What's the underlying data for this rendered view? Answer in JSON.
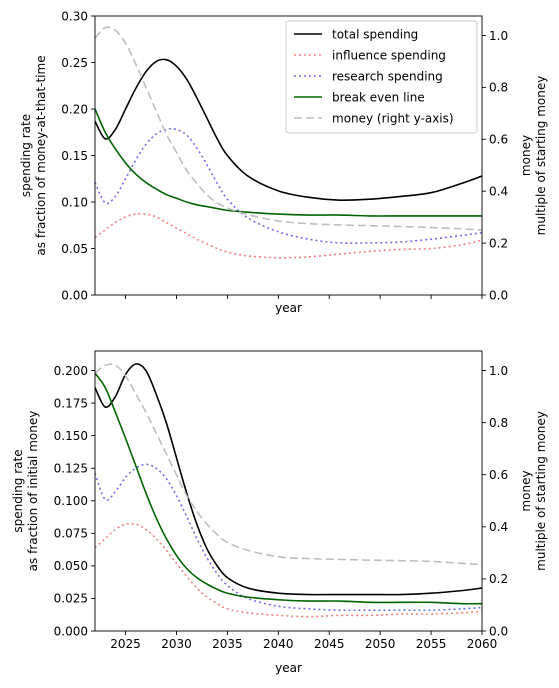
{
  "chart_data": [
    {
      "type": "line",
      "xlabel": "year",
      "ylabel": [
        "spending rate",
        "as fraction of money-at-that-time"
      ],
      "y2label": [
        "money",
        "multiple of starting money"
      ],
      "xlim": [
        2022,
        2060
      ],
      "ylim": [
        0,
        0.3
      ],
      "y2lim": [
        0,
        1.075
      ],
      "xticks": [
        2025,
        2030,
        2035,
        2040,
        2045,
        2050,
        2055,
        2060
      ],
      "show_xtick_labels": false,
      "yticks": [
        "0.00",
        "0.05",
        "0.10",
        "0.15",
        "0.20",
        "0.25",
        "0.30"
      ],
      "y2ticks": [
        "0.0",
        "0.2",
        "0.4",
        "0.6",
        "0.8",
        "1.0"
      ],
      "grid": false,
      "legend_position": "top-right",
      "x": [
        2022,
        2023,
        2024,
        2025,
        2026,
        2027,
        2028,
        2029,
        2030,
        2031,
        2032,
        2033,
        2034,
        2035,
        2037,
        2040,
        2043,
        2046,
        2049,
        2052,
        2055,
        2058,
        2060
      ],
      "series": [
        {
          "name": "total spending",
          "axis": "left",
          "color": "#000000",
          "dash": "",
          "values": [
            0.187,
            0.168,
            0.178,
            0.2,
            0.222,
            0.24,
            0.251,
            0.253,
            0.246,
            0.232,
            0.212,
            0.19,
            0.168,
            0.15,
            0.128,
            0.112,
            0.105,
            0.102,
            0.103,
            0.106,
            0.11,
            0.12,
            0.128
          ]
        },
        {
          "name": "influence spending",
          "axis": "left",
          "color": "#f08080",
          "dash": "2,3",
          "values": [
            0.062,
            0.07,
            0.078,
            0.084,
            0.087,
            0.087,
            0.084,
            0.078,
            0.072,
            0.066,
            0.06,
            0.055,
            0.05,
            0.046,
            0.042,
            0.04,
            0.041,
            0.044,
            0.047,
            0.049,
            0.05,
            0.054,
            0.059
          ]
        },
        {
          "name": "research spending",
          "axis": "left",
          "color": "#7070e6",
          "dash": "2,3",
          "values": [
            0.121,
            0.099,
            0.106,
            0.125,
            0.145,
            0.162,
            0.173,
            0.178,
            0.178,
            0.172,
            0.158,
            0.14,
            0.12,
            0.103,
            0.083,
            0.068,
            0.06,
            0.056,
            0.056,
            0.057,
            0.06,
            0.064,
            0.067
          ]
        },
        {
          "name": "break even line",
          "axis": "left",
          "color": "#006400",
          "dash": "",
          "values": [
            0.2,
            0.175,
            0.157,
            0.142,
            0.13,
            0.121,
            0.114,
            0.108,
            0.104,
            0.1,
            0.097,
            0.095,
            0.093,
            0.091,
            0.089,
            0.087,
            0.086,
            0.086,
            0.085,
            0.085,
            0.085,
            0.085,
            0.085
          ]
        },
        {
          "name": "money (right y-axis)",
          "axis": "right",
          "color": "#bebebe",
          "dash": "8,4",
          "values": [
            0.99,
            1.03,
            1.02,
            0.97,
            0.89,
            0.8,
            0.71,
            0.62,
            0.55,
            0.48,
            0.43,
            0.385,
            0.355,
            0.335,
            0.31,
            0.285,
            0.275,
            0.27,
            0.267,
            0.264,
            0.26,
            0.255,
            0.25
          ]
        }
      ]
    },
    {
      "type": "line",
      "xlabel": "year",
      "ylabel": [
        "spending rate",
        "as fraction of initial money"
      ],
      "y2label": [
        "money",
        "multiple of starting money"
      ],
      "xlim": [
        2022,
        2060
      ],
      "ylim": [
        0,
        0.215
      ],
      "y2lim": [
        0,
        1.075
      ],
      "xticks": [
        2025,
        2030,
        2035,
        2040,
        2045,
        2050,
        2055,
        2060
      ],
      "xtick_labels": [
        "2025",
        "2030",
        "2035",
        "2040",
        "2045",
        "2050",
        "2055",
        "2060"
      ],
      "show_xtick_labels": true,
      "yticks": [
        "0.000",
        "0.025",
        "0.050",
        "0.075",
        "0.100",
        "0.125",
        "0.150",
        "0.175",
        "0.200"
      ],
      "y2ticks": [
        "0.0",
        "0.2",
        "0.4",
        "0.6",
        "0.8",
        "1.0"
      ],
      "grid": false,
      "x": [
        2022,
        2023,
        2024,
        2025,
        2026,
        2027,
        2028,
        2029,
        2030,
        2031,
        2032,
        2033,
        2034,
        2035,
        2037,
        2040,
        2043,
        2046,
        2049,
        2052,
        2055,
        2058,
        2060
      ],
      "series": [
        {
          "name": "total spending",
          "axis": "left",
          "color": "#000000",
          "dash": "",
          "values": [
            0.187,
            0.172,
            0.18,
            0.197,
            0.205,
            0.2,
            0.182,
            0.16,
            0.133,
            0.106,
            0.082,
            0.063,
            0.05,
            0.041,
            0.033,
            0.029,
            0.028,
            0.028,
            0.028,
            0.028,
            0.029,
            0.031,
            0.033
          ]
        },
        {
          "name": "influence spending",
          "axis": "left",
          "color": "#f08080",
          "dash": "2,3",
          "values": [
            0.064,
            0.071,
            0.078,
            0.082,
            0.082,
            0.078,
            0.071,
            0.062,
            0.052,
            0.042,
            0.033,
            0.026,
            0.021,
            0.017,
            0.014,
            0.012,
            0.011,
            0.012,
            0.012,
            0.013,
            0.013,
            0.014,
            0.015
          ]
        },
        {
          "name": "research spending",
          "axis": "left",
          "color": "#7070e6",
          "dash": "2,3",
          "values": [
            0.121,
            0.101,
            0.107,
            0.118,
            0.125,
            0.128,
            0.125,
            0.117,
            0.104,
            0.088,
            0.071,
            0.056,
            0.044,
            0.035,
            0.025,
            0.019,
            0.017,
            0.016,
            0.016,
            0.016,
            0.016,
            0.017,
            0.018
          ]
        },
        {
          "name": "break even line",
          "axis": "left",
          "color": "#006400",
          "dash": "",
          "values": [
            0.198,
            0.187,
            0.168,
            0.148,
            0.127,
            0.106,
            0.087,
            0.071,
            0.058,
            0.048,
            0.041,
            0.036,
            0.032,
            0.029,
            0.026,
            0.024,
            0.023,
            0.023,
            0.022,
            0.022,
            0.022,
            0.021,
            0.021
          ]
        },
        {
          "name": "money (right y-axis)",
          "axis": "right",
          "color": "#bebebe",
          "dash": "8,4",
          "values": [
            0.99,
            1.02,
            1.02,
            0.98,
            0.91,
            0.84,
            0.76,
            0.68,
            0.6,
            0.52,
            0.46,
            0.41,
            0.37,
            0.34,
            0.31,
            0.285,
            0.278,
            0.275,
            0.272,
            0.27,
            0.267,
            0.26,
            0.255
          ]
        }
      ]
    }
  ]
}
